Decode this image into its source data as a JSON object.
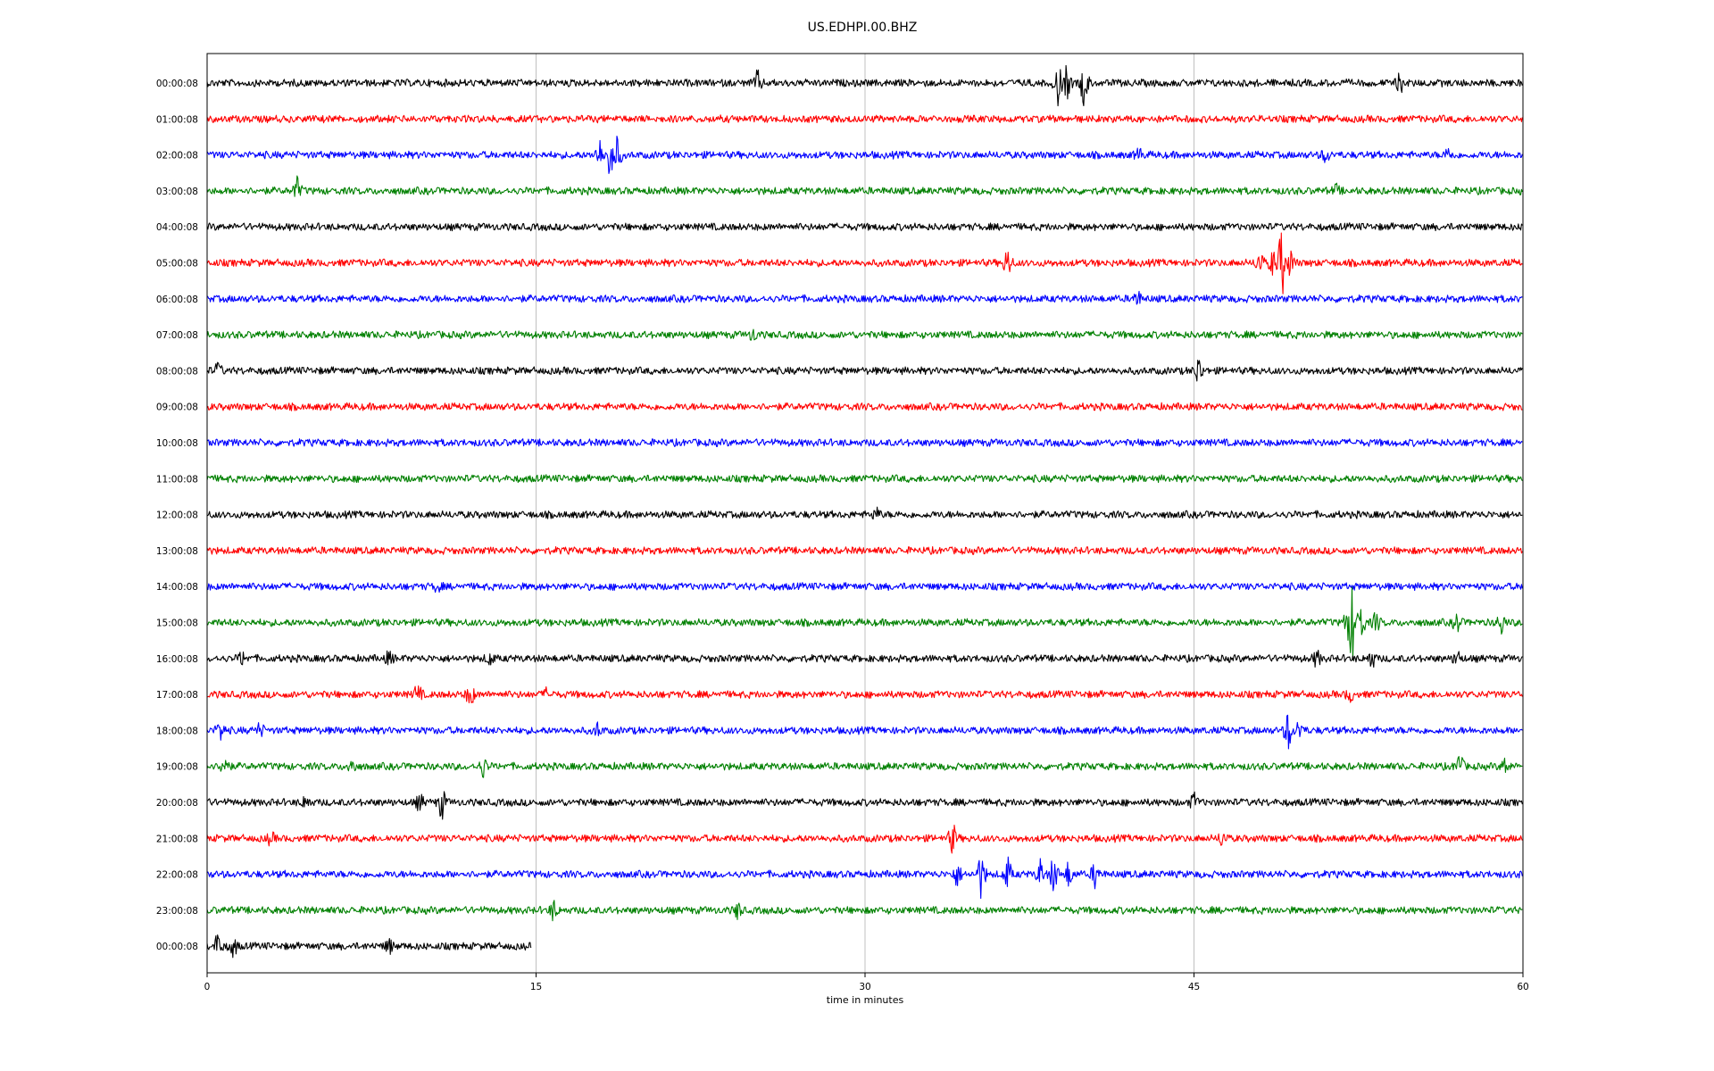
{
  "chart_data": {
    "type": "line",
    "title": "US.EDHPI.00.BHZ",
    "xlabel": "time in minutes",
    "ylabel": "",
    "xlim": [
      0,
      60
    ],
    "x_ticks": [
      0,
      15,
      30,
      45,
      60
    ],
    "x_tick_labels": [
      "0",
      "15",
      "30",
      "45",
      "60"
    ],
    "grid": "vertical lines at 15, 30, 45",
    "series_colors": [
      "#000000",
      "#ff0000",
      "#0000ff",
      "#008000"
    ],
    "rows": [
      {
        "label": "00:00:08",
        "color": "#000000",
        "end": 60,
        "events": [
          [
            25.1,
            1.4
          ],
          [
            38.8,
            2.5
          ],
          [
            39.2,
            2.0
          ],
          [
            40.0,
            3.0
          ],
          [
            54.4,
            1.2
          ]
        ]
      },
      {
        "label": "01:00:08",
        "color": "#ff0000",
        "end": 60,
        "events": []
      },
      {
        "label": "02:00:08",
        "color": "#0000ff",
        "end": 60,
        "events": [
          [
            17.9,
            1.8
          ],
          [
            18.4,
            3.0
          ],
          [
            18.7,
            2.0
          ],
          [
            42.5,
            0.8
          ],
          [
            51.0,
            0.9
          ],
          [
            56.6,
            0.8
          ]
        ]
      },
      {
        "label": "03:00:08",
        "color": "#008000",
        "end": 60,
        "events": [
          [
            4.1,
            1.4
          ],
          [
            51.5,
            0.6
          ]
        ]
      },
      {
        "label": "04:00:08",
        "color": "#000000",
        "end": 60,
        "events": []
      },
      {
        "label": "05:00:08",
        "color": "#ff0000",
        "end": 60,
        "events": [
          [
            36.5,
            1.9
          ],
          [
            48.0,
            1.5
          ],
          [
            48.6,
            1.6
          ],
          [
            49.0,
            4.5
          ],
          [
            49.4,
            1.6
          ]
        ]
      },
      {
        "label": "06:00:08",
        "color": "#0000ff",
        "end": 60,
        "events": [
          [
            42.4,
            1.0
          ]
        ]
      },
      {
        "label": "07:00:08",
        "color": "#008000",
        "end": 60,
        "events": [
          [
            24.9,
            0.7
          ]
        ]
      },
      {
        "label": "08:00:08",
        "color": "#000000",
        "end": 60,
        "events": [
          [
            0.5,
            0.8
          ],
          [
            45.2,
            1.8
          ]
        ]
      },
      {
        "label": "09:00:08",
        "color": "#ff0000",
        "end": 60,
        "events": []
      },
      {
        "label": "10:00:08",
        "color": "#0000ff",
        "end": 60,
        "events": []
      },
      {
        "label": "11:00:08",
        "color": "#008000",
        "end": 60,
        "events": []
      },
      {
        "label": "12:00:08",
        "color": "#000000",
        "end": 60,
        "events": [
          [
            30.5,
            0.8
          ]
        ]
      },
      {
        "label": "13:00:08",
        "color": "#ff0000",
        "end": 60,
        "events": []
      },
      {
        "label": "14:00:08",
        "color": "#0000ff",
        "end": 60,
        "events": [
          [
            10.5,
            0.6
          ]
        ]
      },
      {
        "label": "15:00:08",
        "color": "#008000",
        "end": 60,
        "events": [
          [
            52.0,
            2.0
          ],
          [
            52.2,
            5.0
          ],
          [
            52.6,
            2.5
          ],
          [
            53.3,
            1.2
          ],
          [
            57.0,
            1.2
          ],
          [
            59.0,
            1.4
          ]
        ]
      },
      {
        "label": "16:00:08",
        "color": "#000000",
        "end": 60,
        "events": [
          [
            1.6,
            0.8
          ],
          [
            8.3,
            0.8
          ],
          [
            12.9,
            0.8
          ],
          [
            50.6,
            1.0
          ],
          [
            53.1,
            1.2
          ],
          [
            57.0,
            1.0
          ]
        ]
      },
      {
        "label": "17:00:08",
        "color": "#ff0000",
        "end": 60,
        "events": [
          [
            9.6,
            1.2
          ],
          [
            12.0,
            1.5
          ],
          [
            15.5,
            0.6
          ],
          [
            52.1,
            0.8
          ]
        ]
      },
      {
        "label": "18:00:08",
        "color": "#0000ff",
        "end": 60,
        "events": [
          [
            0.6,
            1.2
          ],
          [
            2.4,
            0.8
          ],
          [
            17.8,
            0.8
          ],
          [
            49.3,
            2.4
          ],
          [
            49.8,
            1.2
          ]
        ]
      },
      {
        "label": "19:00:08",
        "color": "#008000",
        "end": 60,
        "events": [
          [
            0.8,
            1.6
          ],
          [
            6.6,
            0.9
          ],
          [
            12.6,
            1.2
          ],
          [
            57.1,
            1.6
          ],
          [
            59.2,
            1.0
          ]
        ]
      },
      {
        "label": "20:00:08",
        "color": "#000000",
        "end": 60,
        "events": [
          [
            4.5,
            0.9
          ],
          [
            9.7,
            1.0
          ],
          [
            10.7,
            2.0
          ],
          [
            45.0,
            1.0
          ]
        ]
      },
      {
        "label": "21:00:08",
        "color": "#ff0000",
        "end": 60,
        "events": [
          [
            2.9,
            0.7
          ],
          [
            34.0,
            1.8
          ],
          [
            46.3,
            1.0
          ]
        ]
      },
      {
        "label": "22:00:08",
        "color": "#0000ff",
        "end": 60,
        "events": [
          [
            34.2,
            1.4
          ],
          [
            35.3,
            2.8
          ],
          [
            36.5,
            2.0
          ],
          [
            38.0,
            1.6
          ],
          [
            38.6,
            2.4
          ],
          [
            39.3,
            1.6
          ],
          [
            40.5,
            1.6
          ]
        ]
      },
      {
        "label": "23:00:08",
        "color": "#008000",
        "end": 60,
        "events": [
          [
            15.8,
            1.2
          ],
          [
            24.2,
            1.0
          ]
        ]
      },
      {
        "label": "00:00:08",
        "color": "#000000",
        "end": 14.8,
        "events": [
          [
            0.5,
            1.6
          ],
          [
            1.2,
            1.2
          ],
          [
            8.3,
            0.9
          ]
        ]
      }
    ]
  }
}
